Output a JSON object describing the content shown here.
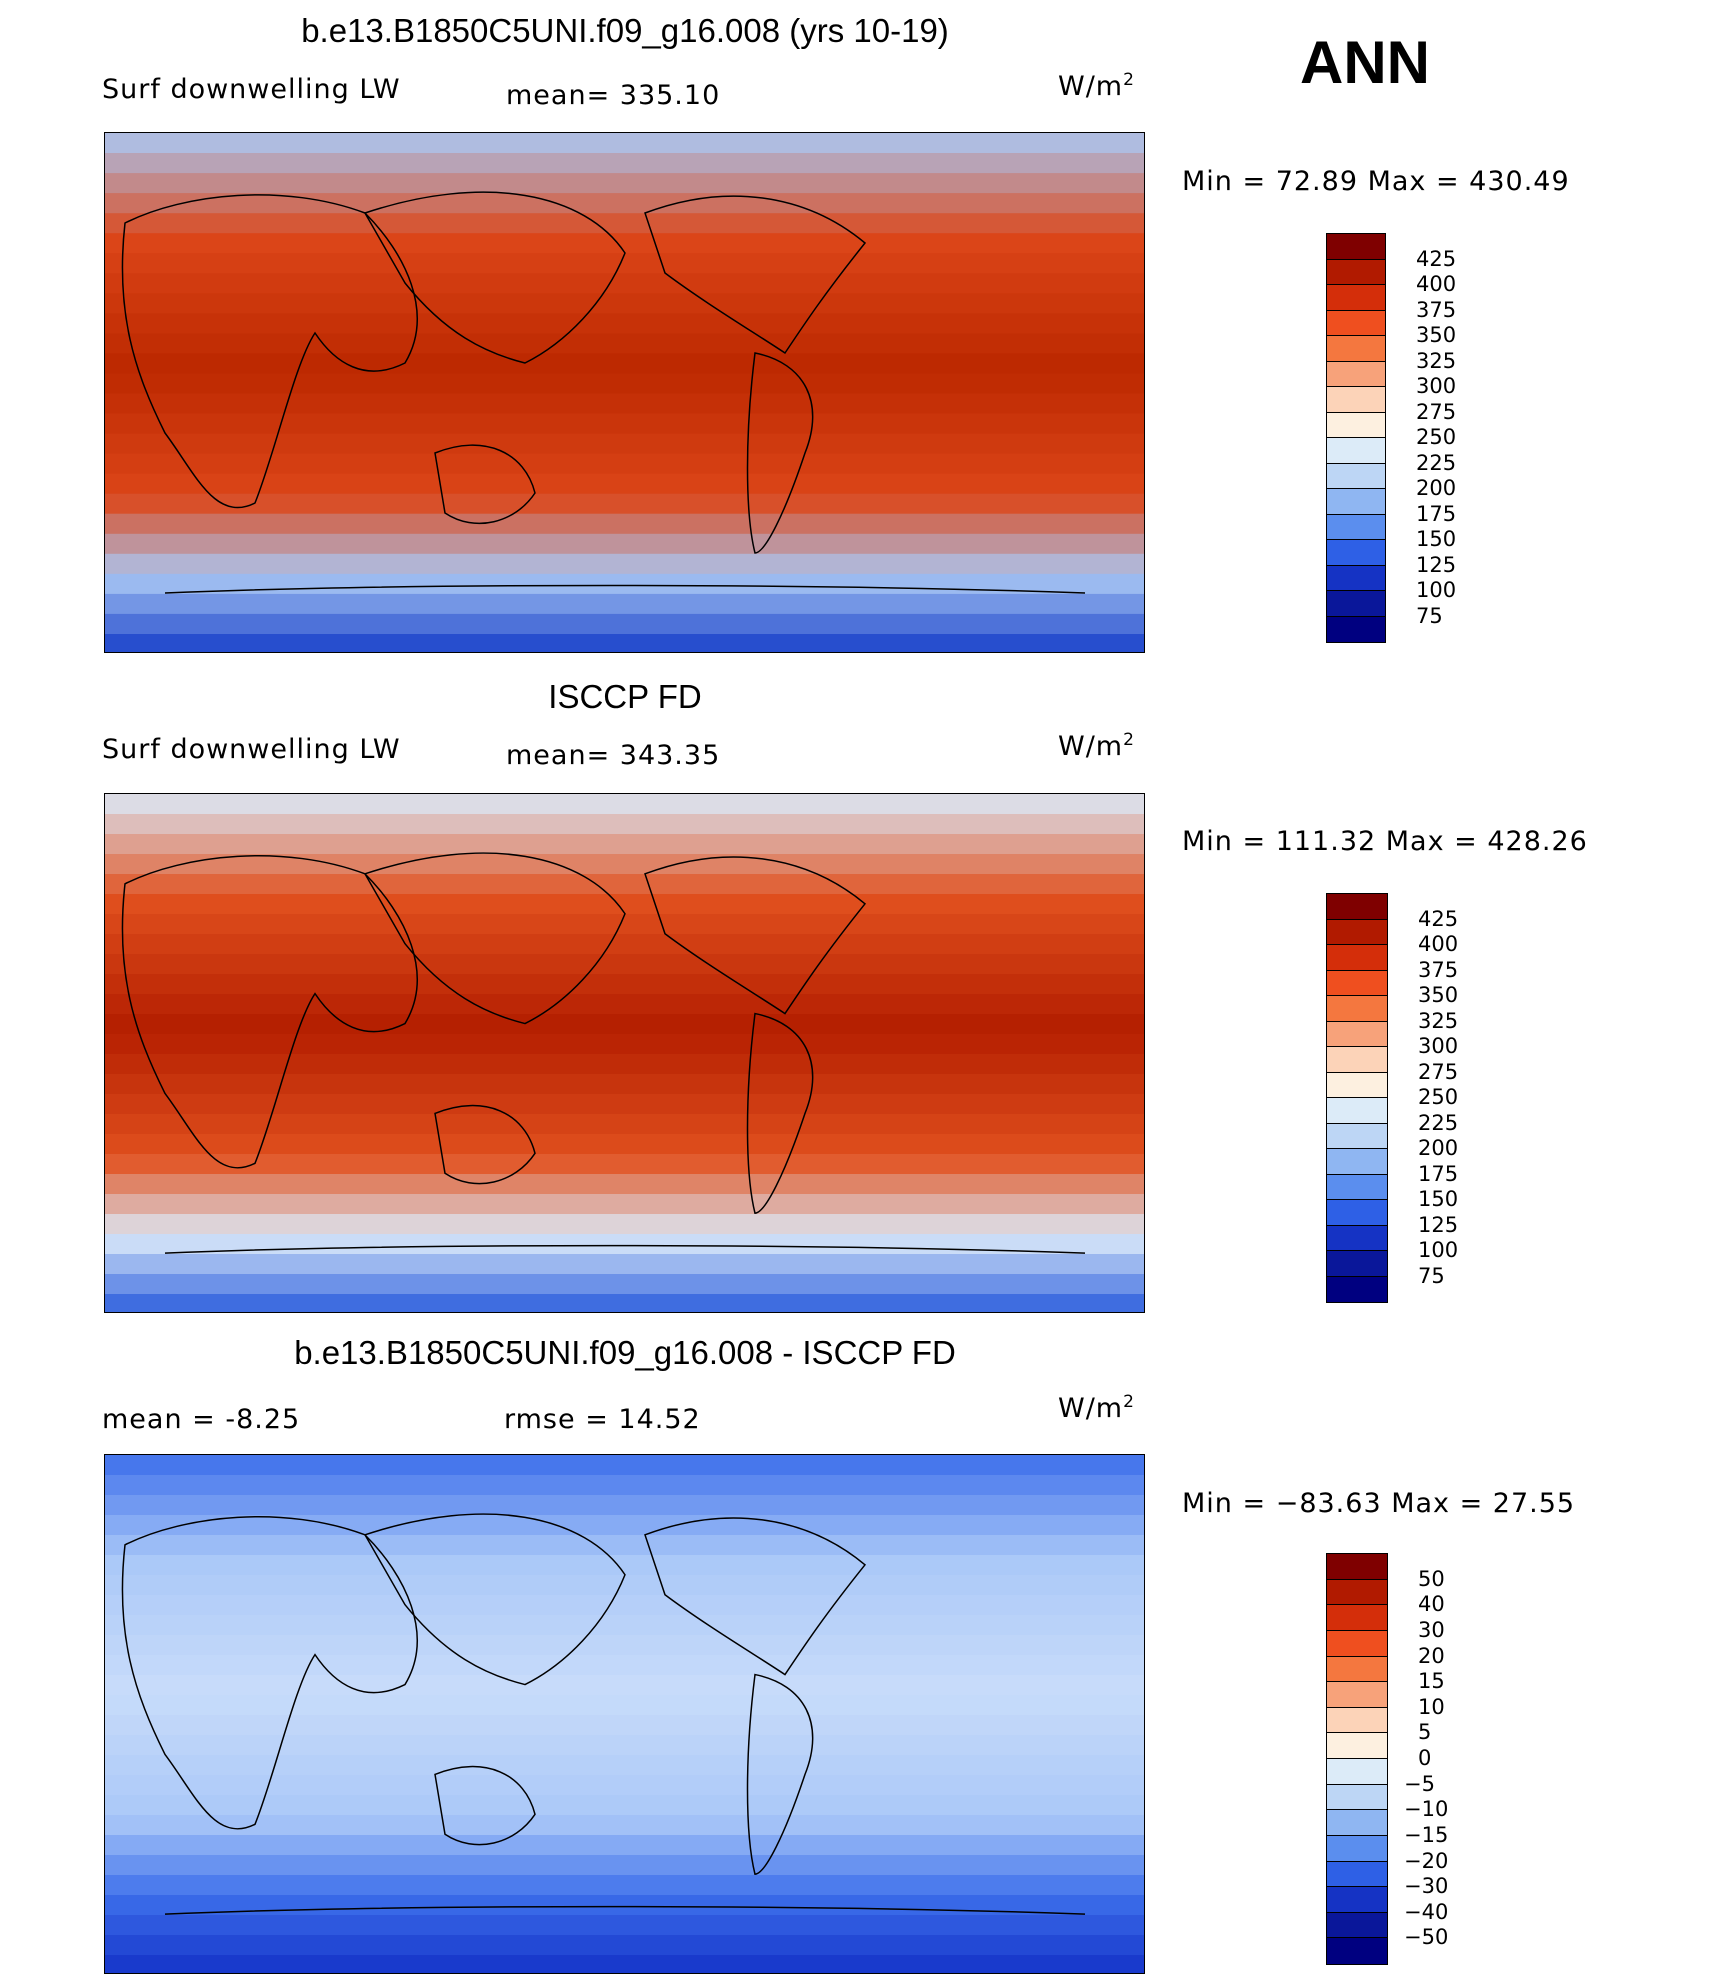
{
  "season": "ANN",
  "panels": [
    {
      "title": "b.e13.B1850C5UNI.f09_g16.008 (yrs 10-19)",
      "left": "Surf downwelling LW",
      "center": "mean= 335.10",
      "units": "W/m",
      "units_sup": "2",
      "minmax": "Min =   72.89  Max  =  430.49",
      "colorbar": {
        "labels": [
          "425",
          "400",
          "375",
          "350",
          "325",
          "300",
          "275",
          "250",
          "225",
          "200",
          "175",
          "150",
          "125",
          "100",
          "75"
        ],
        "colors": [
          "#7f0000",
          "#b11a00",
          "#d42e0a",
          "#ef4f1f",
          "#f4773f",
          "#f7a27a",
          "#fcd3b8",
          "#fdf0e0",
          "#dcebf8",
          "#bdd6f5",
          "#8fb6f2",
          "#5b8eee",
          "#2e60e6",
          "#1533c4",
          "#0a179a",
          "#000080"
        ]
      },
      "field": {
        "eq": [
          188,
          40,
          0
        ],
        "mid": [
          220,
          70,
          25
        ],
        "pole_n": [
          170,
          200,
          245
        ],
        "pole_s": [
          20,
          60,
          200
        ]
      }
    },
    {
      "title": "ISCCP FD",
      "left": "Surf downwelling LW",
      "center": "mean= 343.35",
      "units": "W/m",
      "units_sup": "2",
      "minmax": "Min = 111.32  Max  =  428.26",
      "colorbar": {
        "labels": [
          "425",
          "400",
          "375",
          "350",
          "325",
          "300",
          "275",
          "250",
          "225",
          "200",
          "175",
          "150",
          "125",
          "100",
          "75"
        ],
        "colors": [
          "#7f0000",
          "#b11a00",
          "#d42e0a",
          "#ef4f1f",
          "#f4773f",
          "#f7a27a",
          "#fcd3b8",
          "#fdf0e0",
          "#dcebf8",
          "#bdd6f5",
          "#8fb6f2",
          "#5b8eee",
          "#2e60e6",
          "#1533c4",
          "#0a179a",
          "#000080"
        ]
      },
      "field": {
        "eq": [
          180,
          30,
          0
        ],
        "mid": [
          225,
          80,
          30
        ],
        "pole_n": [
          220,
          235,
          250
        ],
        "pole_s": [
          40,
          90,
          220
        ]
      }
    },
    {
      "title": "b.e13.B1850C5UNI.f09_g16.008 - ISCCP FD",
      "left": "mean =    -8.25",
      "center": "rmse =    14.52",
      "units": "W/m",
      "units_sup": "2",
      "minmax": "Min = −83.63  Max  =   27.55",
      "colorbar": {
        "labels": [
          "50",
          "40",
          "30",
          "20",
          "15",
          "10",
          "5",
          "0",
          "−5",
          "−10",
          "−15",
          "−20",
          "−30",
          "−40",
          "−50"
        ],
        "colors": [
          "#7f0000",
          "#b11a00",
          "#d42e0a",
          "#ef4f1f",
          "#f4773f",
          "#f7a27a",
          "#fcd3b8",
          "#fdf0e0",
          "#dcebf8",
          "#bdd6f5",
          "#8fb6f2",
          "#5b8eee",
          "#2e60e6",
          "#1533c4",
          "#0a179a",
          "#000080"
        ]
      },
      "field": {
        "eq": [
          200,
          220,
          250
        ],
        "mid": [
          170,
          200,
          248
        ],
        "pole_n": [
          60,
          110,
          235
        ],
        "pole_s": [
          20,
          50,
          200
        ]
      }
    }
  ]
}
